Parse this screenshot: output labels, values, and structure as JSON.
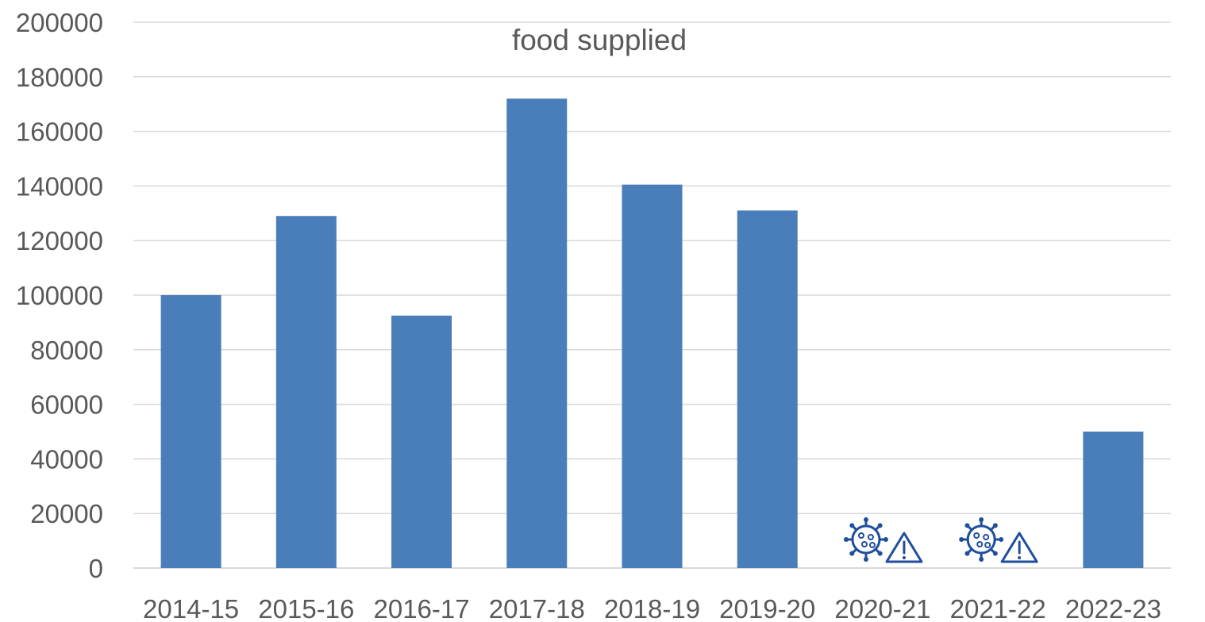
{
  "chart_data": {
    "type": "bar",
    "title": "food supplied",
    "xlabel": "",
    "ylabel": "",
    "categories": [
      "2014-15",
      "2015-16",
      "2016-17",
      "2017-18",
      "2018-19",
      "2019-20",
      "2020-21",
      "2021-22",
      "2022-23"
    ],
    "values": [
      100000,
      129000,
      92500,
      172000,
      140500,
      131000,
      null,
      null,
      50000
    ],
    "ylim": [
      0,
      200000
    ],
    "yticks": [
      "0",
      "20000",
      "40000",
      "60000",
      "80000",
      "100000",
      "120000",
      "140000",
      "160000",
      "180000",
      "200000"
    ],
    "grid": true,
    "legend": "none",
    "bar_color": "#4a7ebb",
    "annotations": [
      {
        "category": "2020-21",
        "icon": "virus-warning-icon",
        "color": "#1f4e9c"
      },
      {
        "category": "2021-22",
        "icon": "virus-warning-icon",
        "color": "#1f4e9c"
      }
    ]
  }
}
